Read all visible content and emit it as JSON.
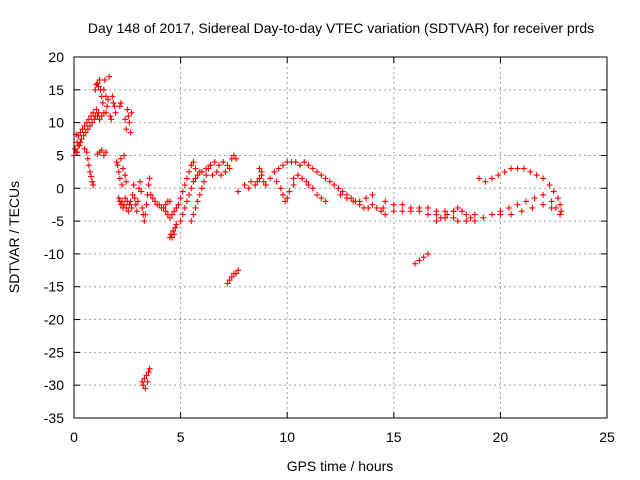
{
  "chart_data": {
    "type": "scatter",
    "title": "Day 148 of 2017, Sidereal Day-to-day VTEC variation (SDTVAR) for receiver prds",
    "xlabel": "GPS time / hours",
    "ylabel": "SDTVAR / TECUs",
    "xlim": [
      0,
      25
    ],
    "ylim": [
      -35,
      20
    ],
    "xticks": [
      0,
      5,
      10,
      15,
      20,
      25
    ],
    "yticks": [
      -35,
      -30,
      -25,
      -20,
      -15,
      -10,
      -5,
      0,
      5,
      10,
      15,
      20
    ],
    "grid": true,
    "marker": "+",
    "color": "#ff0000",
    "series": [
      {
        "name": "prds",
        "points": [
          [
            0.0,
            5.0
          ],
          [
            0.05,
            6.0
          ],
          [
            0.1,
            8.2
          ],
          [
            0.1,
            5.5
          ],
          [
            0.15,
            7.0
          ],
          [
            0.2,
            8.0
          ],
          [
            0.25,
            6.5
          ],
          [
            0.3,
            8.5
          ],
          [
            0.35,
            7.5
          ],
          [
            0.4,
            9.0
          ],
          [
            0.45,
            8.0
          ],
          [
            0.5,
            9.5
          ],
          [
            0.5,
            6.0
          ],
          [
            0.55,
            8.5
          ],
          [
            0.6,
            10.0
          ],
          [
            0.65,
            9.0
          ],
          [
            0.7,
            10.5
          ],
          [
            0.75,
            9.5
          ],
          [
            0.8,
            11.0
          ],
          [
            0.85,
            10.0
          ],
          [
            0.9,
            11.5
          ],
          [
            0.95,
            10.5
          ],
          [
            1.0,
            11.0
          ],
          [
            1.05,
            12.0
          ],
          [
            1.1,
            11.0
          ],
          [
            1.15,
            11.5
          ],
          [
            1.2,
            10.5
          ],
          [
            1.3,
            11.0
          ],
          [
            1.4,
            11.5
          ],
          [
            1.5,
            11.5
          ],
          [
            0.6,
            5.5
          ],
          [
            0.65,
            4.5
          ],
          [
            0.7,
            3.5
          ],
          [
            0.75,
            2.5
          ],
          [
            0.8,
            1.8
          ],
          [
            0.85,
            1.0
          ],
          [
            0.9,
            0.5
          ],
          [
            0.3,
            7.0
          ],
          [
            0.2,
            6.5
          ],
          [
            0.15,
            5.5
          ],
          [
            1.0,
            15.0
          ],
          [
            1.05,
            15.8
          ],
          [
            1.1,
            16.0
          ],
          [
            1.15,
            15.5
          ],
          [
            1.2,
            16.5
          ],
          [
            1.25,
            15.0
          ],
          [
            1.3,
            14.0
          ],
          [
            1.35,
            13.0
          ],
          [
            1.4,
            15.0
          ],
          [
            1.45,
            16.5
          ],
          [
            1.5,
            14.0
          ],
          [
            1.55,
            12.5
          ],
          [
            1.6,
            13.5
          ],
          [
            1.65,
            17.0
          ],
          [
            1.7,
            11.0
          ],
          [
            1.75,
            10.5
          ],
          [
            1.8,
            14.0
          ],
          [
            1.85,
            13.0
          ],
          [
            1.9,
            12.5
          ],
          [
            1.95,
            11.5
          ],
          [
            1.1,
            5.2
          ],
          [
            1.2,
            5.5
          ],
          [
            1.3,
            5.8
          ],
          [
            1.4,
            5.0
          ],
          [
            1.5,
            5.5
          ],
          [
            2.0,
            4.0
          ],
          [
            2.05,
            3.5
          ],
          [
            2.1,
            2.5
          ],
          [
            2.15,
            1.5
          ],
          [
            2.2,
            4.5
          ],
          [
            2.25,
            0.5
          ],
          [
            2.3,
            3.0
          ],
          [
            2.35,
            5.0
          ],
          [
            2.4,
            2.0
          ],
          [
            2.45,
            1.0
          ],
          [
            2.1,
            -1.5
          ],
          [
            2.15,
            -2.0
          ],
          [
            2.2,
            -2.5
          ],
          [
            2.25,
            -2.0
          ],
          [
            2.3,
            -3.0
          ],
          [
            2.35,
            -2.5
          ],
          [
            2.4,
            -1.5
          ],
          [
            2.45,
            -3.0
          ],
          [
            2.5,
            -2.0
          ],
          [
            2.55,
            -3.5
          ],
          [
            2.6,
            -2.5
          ],
          [
            2.65,
            -2.0
          ],
          [
            2.7,
            -3.0
          ],
          [
            2.75,
            -1.0
          ],
          [
            2.8,
            0.5
          ],
          [
            2.85,
            -1.5
          ],
          [
            2.9,
            -2.5
          ],
          [
            2.95,
            -3.5
          ],
          [
            3.0,
            -2.0
          ],
          [
            3.05,
            0.0
          ],
          [
            3.1,
            1.0
          ],
          [
            3.15,
            -0.5
          ],
          [
            3.2,
            -3.0
          ],
          [
            3.25,
            -4.0
          ],
          [
            3.3,
            -5.0
          ],
          [
            3.35,
            -4.0
          ],
          [
            3.4,
            -2.5
          ],
          [
            3.45,
            -1.0
          ],
          [
            3.5,
            0.5
          ],
          [
            3.55,
            1.5
          ],
          [
            2.4,
            10.5
          ],
          [
            2.45,
            9.0
          ],
          [
            2.5,
            12.0
          ],
          [
            2.55,
            11.0
          ],
          [
            2.6,
            10.0
          ],
          [
            2.65,
            8.5
          ],
          [
            2.7,
            11.5
          ],
          [
            2.2,
            13.0
          ],
          [
            2.15,
            12.5
          ],
          [
            3.2,
            -29.5
          ],
          [
            3.25,
            -30.0
          ],
          [
            3.3,
            -29.0
          ],
          [
            3.35,
            -30.5
          ],
          [
            3.4,
            -28.5
          ],
          [
            3.45,
            -29.5
          ],
          [
            3.5,
            -28.0
          ],
          [
            3.55,
            -27.5
          ],
          [
            3.6,
            -1.0
          ],
          [
            3.7,
            -1.5
          ],
          [
            3.8,
            -2.0
          ],
          [
            3.9,
            -2.5
          ],
          [
            4.0,
            -2.5
          ],
          [
            4.1,
            -3.0
          ],
          [
            4.2,
            -3.0
          ],
          [
            4.3,
            -2.5
          ],
          [
            4.4,
            -2.0
          ],
          [
            4.5,
            -2.0
          ],
          [
            4.5,
            -7.5
          ],
          [
            4.55,
            -7.0
          ],
          [
            4.6,
            -7.5
          ],
          [
            4.65,
            -6.5
          ],
          [
            4.7,
            -7.0
          ],
          [
            4.75,
            -6.0
          ],
          [
            4.8,
            -5.5
          ],
          [
            4.3,
            -3.5
          ],
          [
            4.4,
            -4.0
          ],
          [
            4.5,
            -4.5
          ],
          [
            4.6,
            -4.0
          ],
          [
            4.7,
            -3.5
          ],
          [
            4.8,
            -3.0
          ],
          [
            4.9,
            -2.5
          ],
          [
            5.0,
            -1.5
          ],
          [
            5.1,
            -0.5
          ],
          [
            5.2,
            0.5
          ],
          [
            5.3,
            1.5
          ],
          [
            5.4,
            2.5
          ],
          [
            5.5,
            3.5
          ],
          [
            5.6,
            4.0
          ],
          [
            5.7,
            3.0
          ],
          [
            5.0,
            -5.0
          ],
          [
            5.1,
            -4.0
          ],
          [
            5.2,
            -3.0
          ],
          [
            5.3,
            -2.0
          ],
          [
            5.4,
            -1.0
          ],
          [
            5.5,
            0.0
          ],
          [
            5.6,
            1.0
          ],
          [
            5.7,
            1.5
          ],
          [
            5.8,
            2.0
          ],
          [
            5.9,
            2.5
          ],
          [
            5.5,
            -5.0
          ],
          [
            5.6,
            -4.0
          ],
          [
            5.7,
            -3.0
          ],
          [
            5.8,
            -2.0
          ],
          [
            5.9,
            -1.0
          ],
          [
            6.0,
            0.0
          ],
          [
            6.1,
            1.0
          ],
          [
            6.2,
            2.0
          ],
          [
            6.3,
            3.0
          ],
          [
            6.4,
            3.5
          ],
          [
            6.0,
            2.5
          ],
          [
            6.2,
            3.0
          ],
          [
            6.4,
            3.5
          ],
          [
            6.6,
            4.0
          ],
          [
            6.8,
            3.5
          ],
          [
            7.0,
            4.0
          ],
          [
            7.2,
            3.5
          ],
          [
            7.4,
            4.5
          ],
          [
            7.5,
            5.0
          ],
          [
            7.6,
            4.5
          ],
          [
            6.5,
            2.0
          ],
          [
            6.7,
            2.5
          ],
          [
            6.9,
            2.0
          ],
          [
            7.1,
            2.5
          ],
          [
            7.3,
            3.0
          ],
          [
            7.2,
            -14.5
          ],
          [
            7.3,
            -14.0
          ],
          [
            7.4,
            -13.5
          ],
          [
            7.5,
            -13.0
          ],
          [
            7.6,
            -13.0
          ],
          [
            7.7,
            -12.5
          ],
          [
            7.7,
            -0.5
          ],
          [
            8.0,
            0.5
          ],
          [
            8.2,
            0.0
          ],
          [
            8.3,
            1.0
          ],
          [
            8.5,
            0.5
          ],
          [
            8.6,
            1.0
          ],
          [
            8.7,
            1.5
          ],
          [
            8.8,
            2.0
          ],
          [
            8.7,
            3.0
          ],
          [
            8.8,
            2.5
          ],
          [
            8.9,
            1.0
          ],
          [
            9.0,
            0.5
          ],
          [
            9.2,
            1.5
          ],
          [
            9.4,
            2.5
          ],
          [
            9.6,
            3.0
          ],
          [
            9.8,
            3.5
          ],
          [
            10.0,
            4.0
          ],
          [
            10.2,
            4.0
          ],
          [
            10.4,
            4.0
          ],
          [
            10.6,
            3.5
          ],
          [
            10.8,
            4.0
          ],
          [
            11.0,
            3.5
          ],
          [
            9.5,
            1.0
          ],
          [
            9.7,
            0.0
          ],
          [
            9.8,
            -1.0
          ],
          [
            9.9,
            -2.0
          ],
          [
            10.0,
            -1.5
          ],
          [
            10.1,
            -0.5
          ],
          [
            10.3,
            0.5
          ],
          [
            10.3,
            1.5
          ],
          [
            10.5,
            2.0
          ],
          [
            10.7,
            1.5
          ],
          [
            10.9,
            1.0
          ],
          [
            11.0,
            0.5
          ],
          [
            11.2,
            0.0
          ],
          [
            11.4,
            -1.0
          ],
          [
            11.6,
            -1.5
          ],
          [
            11.8,
            -2.0
          ],
          [
            11.2,
            3.0
          ],
          [
            11.4,
            2.5
          ],
          [
            11.6,
            2.0
          ],
          [
            11.8,
            1.5
          ],
          [
            12.0,
            1.0
          ],
          [
            12.2,
            0.5
          ],
          [
            12.4,
            0.0
          ],
          [
            12.6,
            -0.5
          ],
          [
            12.8,
            -1.0
          ],
          [
            13.0,
            -1.5
          ],
          [
            13.2,
            -2.0
          ],
          [
            13.4,
            -2.5
          ],
          [
            13.6,
            -3.0
          ],
          [
            13.8,
            -3.0
          ],
          [
            14.0,
            -2.5
          ],
          [
            14.2,
            -3.0
          ],
          [
            14.4,
            -3.5
          ],
          [
            14.5,
            -3.0
          ],
          [
            14.6,
            -4.0
          ],
          [
            12.5,
            -1.0
          ],
          [
            12.8,
            -1.5
          ],
          [
            13.1,
            -2.0
          ],
          [
            13.4,
            -2.0
          ],
          [
            13.7,
            -1.5
          ],
          [
            14.0,
            -1.0
          ],
          [
            14.6,
            -2.0
          ],
          [
            15.0,
            -2.5
          ],
          [
            15.4,
            -2.5
          ],
          [
            15.8,
            -3.0
          ],
          [
            16.2,
            -3.0
          ],
          [
            16.6,
            -3.0
          ],
          [
            17.0,
            -3.5
          ],
          [
            17.4,
            -3.5
          ],
          [
            17.8,
            -3.5
          ],
          [
            15.0,
            -3.5
          ],
          [
            15.4,
            -3.5
          ],
          [
            15.8,
            -3.5
          ],
          [
            16.2,
            -3.5
          ],
          [
            16.6,
            -4.0
          ],
          [
            17.0,
            -4.0
          ],
          [
            17.4,
            -4.5
          ],
          [
            17.8,
            -4.5
          ],
          [
            16.0,
            -11.5
          ],
          [
            16.2,
            -11.0
          ],
          [
            16.4,
            -10.5
          ],
          [
            16.6,
            -10.0
          ],
          [
            17.0,
            -5.0
          ],
          [
            17.2,
            -4.5
          ],
          [
            17.5,
            -4.0
          ],
          [
            17.8,
            -3.5
          ],
          [
            18.0,
            -3.0
          ],
          [
            18.2,
            -3.5
          ],
          [
            18.4,
            -4.0
          ],
          [
            18.6,
            -4.5
          ],
          [
            18.8,
            -4.0
          ],
          [
            18.0,
            -5.0
          ],
          [
            18.4,
            -5.0
          ],
          [
            18.8,
            -5.0
          ],
          [
            19.2,
            -4.5
          ],
          [
            19.6,
            -4.0
          ],
          [
            20.0,
            -3.5
          ],
          [
            20.4,
            -3.0
          ],
          [
            20.8,
            -2.5
          ],
          [
            21.2,
            -2.0
          ],
          [
            21.6,
            -1.5
          ],
          [
            22.0,
            -1.0
          ],
          [
            22.4,
            -2.0
          ],
          [
            22.6,
            -3.0
          ],
          [
            22.8,
            -4.0
          ],
          [
            19.0,
            1.5
          ],
          [
            19.3,
            1.0
          ],
          [
            19.6,
            1.5
          ],
          [
            19.9,
            2.0
          ],
          [
            20.2,
            2.5
          ],
          [
            20.5,
            3.0
          ],
          [
            20.8,
            3.0
          ],
          [
            21.1,
            3.0
          ],
          [
            21.4,
            2.5
          ],
          [
            21.7,
            2.0
          ],
          [
            22.0,
            1.5
          ],
          [
            22.3,
            0.5
          ],
          [
            22.5,
            -0.5
          ],
          [
            22.7,
            -1.5
          ],
          [
            22.8,
            -2.5
          ],
          [
            22.85,
            -3.5
          ],
          [
            20.0,
            -4.0
          ],
          [
            20.5,
            -4.0
          ],
          [
            21.0,
            -3.5
          ],
          [
            21.5,
            -3.0
          ],
          [
            22.0,
            -2.5
          ],
          [
            22.4,
            -3.0
          ]
        ]
      }
    ]
  }
}
